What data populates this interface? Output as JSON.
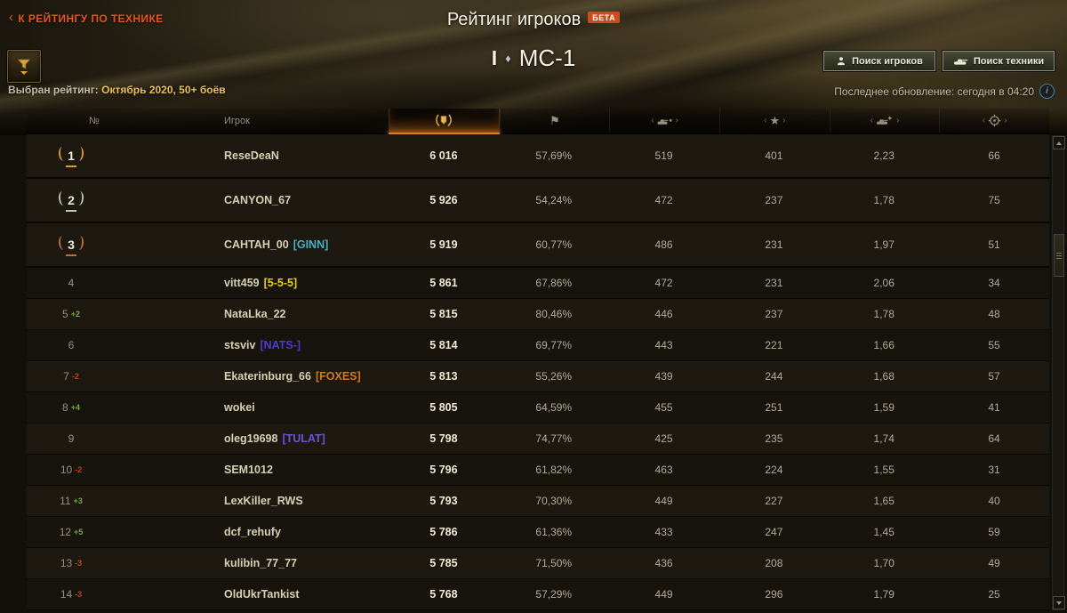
{
  "header": {
    "back_chevron": "‹",
    "back_link": "К РЕЙТИНГУ ПО ТЕХНИКЕ",
    "title": "Рейтинг игроков",
    "beta": "БЕТА",
    "tank_tier": "I",
    "tier_diamond": "♦",
    "tank_name": "МС-1",
    "search_players": "Поиск игроков",
    "search_vehicles": "Поиск техники",
    "selected_label": "Выбран рейтинг:",
    "selected_value": "Октябрь 2020, 50+ боёв",
    "last_update": "Последнее обновление: сегодня в 04:20",
    "info_glyph": "i"
  },
  "table": {
    "col_num": "№",
    "col_player": "Игрок",
    "flank_left": "‹",
    "flank_right": "›",
    "winrate_flag_glyph": "⚑",
    "experience_star_glyph": "★",
    "columns": [
      "rating",
      "winrate",
      "avg-damage",
      "avg-experience",
      "frags-per-battle",
      "battles"
    ],
    "accent_color": "#e07c22",
    "rows": [
      {
        "rank": "1",
        "medal": "gold",
        "change": "",
        "player": "ReseDeaN",
        "clan": "",
        "clan_color": "",
        "rating": "6 016",
        "win": "57,69%",
        "dmg": "519",
        "exp": "401",
        "frags": "2,23",
        "battles": "66"
      },
      {
        "rank": "2",
        "medal": "silver",
        "change": "",
        "player": "CANYON_67",
        "clan": "",
        "clan_color": "",
        "rating": "5 926",
        "win": "54,24%",
        "dmg": "472",
        "exp": "237",
        "frags": "1,78",
        "battles": "75"
      },
      {
        "rank": "3",
        "medal": "bronze",
        "change": "",
        "player": "CAHTAH_00",
        "clan": "[GINN]",
        "clan_color": "#45b0c4",
        "rating": "5 919",
        "win": "60,77%",
        "dmg": "486",
        "exp": "231",
        "frags": "1,97",
        "battles": "51"
      },
      {
        "rank": "4",
        "medal": "",
        "change": "",
        "player": "vitt459",
        "clan": "[5-5-5]",
        "clan_color": "#e3d217",
        "rating": "5 861",
        "win": "67,86%",
        "dmg": "472",
        "exp": "231",
        "frags": "2,06",
        "battles": "34"
      },
      {
        "rank": "5",
        "medal": "",
        "change": "+2",
        "player": "NataLka_22",
        "clan": "",
        "clan_color": "",
        "rating": "5 815",
        "win": "80,46%",
        "dmg": "446",
        "exp": "237",
        "frags": "1,78",
        "battles": "48"
      },
      {
        "rank": "6",
        "medal": "",
        "change": "",
        "player": "stsviv",
        "clan": "[NATS-]",
        "clan_color": "#4a3bd4",
        "rating": "5 814",
        "win": "69,77%",
        "dmg": "443",
        "exp": "221",
        "frags": "1,66",
        "battles": "55"
      },
      {
        "rank": "7",
        "medal": "",
        "change": "-2",
        "player": "Ekaterinburg_66",
        "clan": "[FOXES]",
        "clan_color": "#d07a1f",
        "rating": "5 813",
        "win": "55,26%",
        "dmg": "439",
        "exp": "244",
        "frags": "1,68",
        "battles": "57"
      },
      {
        "rank": "8",
        "medal": "",
        "change": "+4",
        "player": "wokei",
        "clan": "",
        "clan_color": "",
        "rating": "5 805",
        "win": "64,59%",
        "dmg": "455",
        "exp": "251",
        "frags": "1,59",
        "battles": "41"
      },
      {
        "rank": "9",
        "medal": "",
        "change": "",
        "player": "oleg19698",
        "clan": "[TULAT]",
        "clan_color": "#6a55d8",
        "rating": "5 798",
        "win": "74,77%",
        "dmg": "425",
        "exp": "235",
        "frags": "1,74",
        "battles": "64"
      },
      {
        "rank": "10",
        "medal": "",
        "change": "-2",
        "player": "SEM1012",
        "clan": "",
        "clan_color": "",
        "rating": "5 796",
        "win": "61,82%",
        "dmg": "463",
        "exp": "224",
        "frags": "1,55",
        "battles": "31"
      },
      {
        "rank": "11",
        "medal": "",
        "change": "+3",
        "player": "LexKiller_RWS",
        "clan": "",
        "clan_color": "",
        "rating": "5 793",
        "win": "70,30%",
        "dmg": "449",
        "exp": "227",
        "frags": "1,65",
        "battles": "40"
      },
      {
        "rank": "12",
        "medal": "",
        "change": "+5",
        "player": "dcf_rehufy",
        "clan": "",
        "clan_color": "",
        "rating": "5 786",
        "win": "61,36%",
        "dmg": "433",
        "exp": "247",
        "frags": "1,45",
        "battles": "59"
      },
      {
        "rank": "13",
        "medal": "",
        "change": "-3",
        "player": "kulibin_77_77",
        "clan": "",
        "clan_color": "",
        "rating": "5 785",
        "win": "71,50%",
        "dmg": "436",
        "exp": "208",
        "frags": "1,70",
        "battles": "49"
      },
      {
        "rank": "14",
        "medal": "",
        "change": "-3",
        "player": "OldUkrTankist",
        "clan": "",
        "clan_color": "",
        "rating": "5 768",
        "win": "57,29%",
        "dmg": "449",
        "exp": "296",
        "frags": "1,79",
        "battles": "25"
      }
    ]
  }
}
